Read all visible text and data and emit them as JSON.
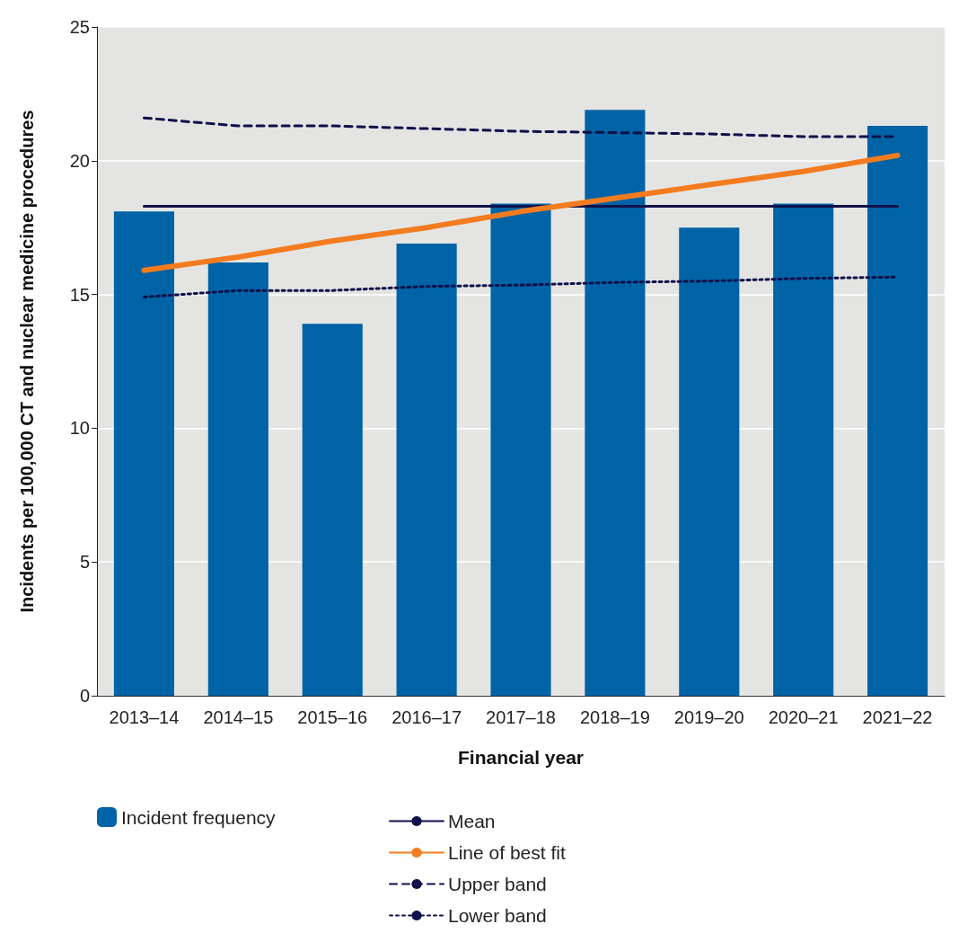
{
  "chart_data": {
    "type": "bar",
    "xlabel": "Financial year",
    "ylabel": "Incidents per 100,000 CT and nuclear medicine procedures",
    "categories": [
      "2013–14",
      "2014–15",
      "2015–16",
      "2016–17",
      "2017–18",
      "2018–19",
      "2019–20",
      "2020–21",
      "2021–22"
    ],
    "series": [
      {
        "name": "Incident frequency",
        "color": "#0063a6",
        "values": [
          18.1,
          16.2,
          13.9,
          16.9,
          18.4,
          21.9,
          17.5,
          18.4,
          21.3
        ]
      },
      {
        "name": "Mean",
        "type": "line",
        "color": "#10104a",
        "line_style": "solid",
        "values": [
          18.3,
          18.3,
          18.3,
          18.3,
          18.3,
          18.3,
          18.3,
          18.3,
          18.3
        ]
      },
      {
        "name": "Line of best fit",
        "type": "line",
        "color": "#f47c20",
        "line_style": "solid",
        "values": [
          15.9,
          16.4,
          17.0,
          17.5,
          18.1,
          18.6,
          19.1,
          19.6,
          20.2
        ]
      },
      {
        "name": "Upper band",
        "type": "line",
        "color": "#10104a",
        "line_style": "dashed",
        "values": [
          21.6,
          21.3,
          21.3,
          21.2,
          21.1,
          21.05,
          21.0,
          20.9,
          20.9
        ]
      },
      {
        "name": "Lower band",
        "type": "line",
        "color": "#10104a",
        "line_style": "dotted",
        "values": [
          14.9,
          15.15,
          15.15,
          15.3,
          15.35,
          15.45,
          15.5,
          15.6,
          15.65
        ]
      }
    ],
    "ylim": [
      0,
      25
    ],
    "yticks": [
      0,
      5,
      10,
      15,
      20,
      25
    ],
    "grid": "y",
    "legend": "bottom",
    "marker": "none"
  }
}
